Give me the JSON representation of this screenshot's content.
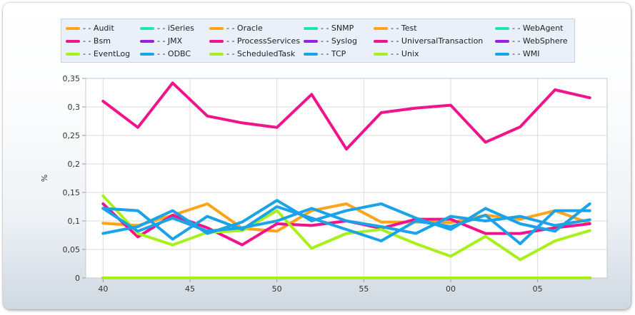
{
  "chart_data": {
    "type": "line",
    "ylabel": "%",
    "ylim": [
      0,
      0.35
    ],
    "grid": true,
    "legend_placement": "top",
    "y_ticks": [
      "0",
      "0,05",
      "0,1",
      "0,15",
      "0,2",
      "0,25",
      "0,3",
      "0,35"
    ],
    "x_ticks": [
      "40",
      "45",
      "50",
      "55",
      "00",
      "05"
    ],
    "x": [
      39.5,
      41.5,
      43.5,
      45.5,
      47.5,
      49.5,
      51.5,
      53.5,
      55.5,
      57.5,
      59.5,
      61.5,
      63.5,
      65.5,
      67.5
    ],
    "series": [
      {
        "name": "- - Audit",
        "color": "#ffa31a",
        "values": [
          0.096,
          0.092,
          0.11,
          0.13,
          0.087,
          0.082,
          0.118,
          0.13,
          0.098,
          0.098,
          0.097,
          0.11,
          0.103,
          0.118,
          0.096
        ]
      },
      {
        "name": "- - iSeries",
        "color": "#1be8a6",
        "values": [
          0,
          0,
          0,
          0,
          0,
          0,
          0,
          0,
          0,
          0,
          0,
          0,
          0,
          0,
          0
        ]
      },
      {
        "name": "- - Oracle",
        "color": "#ffa31a",
        "values": [
          0,
          0,
          0,
          0,
          0,
          0,
          0,
          0,
          0,
          0,
          0,
          0,
          0,
          0,
          0
        ]
      },
      {
        "name": "- - SNMP",
        "color": "#1be8a6",
        "values": [
          0,
          0,
          0,
          0,
          0,
          0,
          0,
          0,
          0,
          0,
          0,
          0,
          0,
          0,
          0
        ]
      },
      {
        "name": "- - Test",
        "color": "#ffa31a",
        "values": [
          0,
          0,
          0,
          0,
          0,
          0,
          0,
          0,
          0,
          0,
          0,
          0,
          0,
          0,
          0
        ]
      },
      {
        "name": "- - WebAgent",
        "color": "#1be8a6",
        "values": [
          0,
          0,
          0,
          0,
          0,
          0,
          0,
          0,
          0,
          0,
          0,
          0,
          0,
          0,
          0
        ]
      },
      {
        "name": "- - Bsm",
        "color": "#f0138c",
        "values": [
          0.13,
          0.072,
          0.11,
          0.088,
          0.058,
          0.095,
          0.092,
          0.1,
          0.087,
          0.103,
          0.103,
          0.078,
          0.078,
          0.088,
          0.095
        ]
      },
      {
        "name": "- - JMX",
        "color": "#9a1ee0",
        "values": [
          0,
          0,
          0,
          0,
          0,
          0,
          0,
          0,
          0,
          0,
          0,
          0,
          0,
          0,
          0
        ]
      },
      {
        "name": "- - ProcessServices",
        "color": "#f0138c",
        "values": [
          0,
          0,
          0,
          0,
          0,
          0,
          0,
          0,
          0,
          0,
          0,
          0,
          0,
          0,
          0
        ]
      },
      {
        "name": "- - Syslog",
        "color": "#9a1ee0",
        "values": [
          0,
          0,
          0,
          0,
          0,
          0,
          0,
          0,
          0,
          0,
          0,
          0,
          0,
          0,
          0
        ]
      },
      {
        "name": "- - UniversalTransaction",
        "color": "#f0138c",
        "values": [
          0.31,
          0.264,
          0.342,
          0.284,
          0.272,
          0.264,
          0.322,
          0.226,
          0.29,
          0.298,
          0.303,
          0.238,
          0.265,
          0.33,
          0.316
        ]
      },
      {
        "name": "- - WebSphere",
        "color": "#9a1ee0",
        "values": [
          0,
          0,
          0,
          0,
          0,
          0,
          0,
          0,
          0,
          0,
          0,
          0,
          0,
          0,
          0
        ]
      },
      {
        "name": "- - EventLog",
        "color": "#a8f01a",
        "values": [
          0.144,
          0.078,
          0.058,
          0.08,
          0.083,
          0.118,
          0.052,
          0.078,
          0.085,
          0.06,
          0.038,
          0.073,
          0.032,
          0.065,
          0.083
        ]
      },
      {
        "name": "- - ODBC",
        "color": "#1aa3e8",
        "values": [
          0.122,
          0.118,
          0.068,
          0.108,
          0.085,
          0.125,
          0.105,
          0.085,
          0.065,
          0.1,
          0.09,
          0.11,
          0.06,
          0.118,
          0.118
        ]
      },
      {
        "name": "- - ScheduledTask",
        "color": "#a8f01a",
        "values": [
          0,
          0,
          0,
          0,
          0,
          0,
          0,
          0,
          0,
          0,
          0,
          0,
          0,
          0,
          0
        ]
      },
      {
        "name": "- - TCP",
        "color": "#1aa3e8",
        "values": [
          0.078,
          0.09,
          0.118,
          0.078,
          0.098,
          0.136,
          0.1,
          0.118,
          0.13,
          0.105,
          0.085,
          0.122,
          0.095,
          0.082,
          0.13
        ]
      },
      {
        "name": "- - Unix",
        "color": "#a8f01a",
        "values": [
          0,
          0,
          0,
          0,
          0,
          0,
          0,
          0,
          0,
          0,
          0,
          0,
          0,
          0,
          0
        ]
      },
      {
        "name": "- - WMI",
        "color": "#1aa3e8",
        "values": [
          0.122,
          0.082,
          0.105,
          0.082,
          0.088,
          0.1,
          0.122,
          0.1,
          0.09,
          0.078,
          0.108,
          0.1,
          0.108,
          0.092,
          0.102
        ]
      }
    ]
  }
}
